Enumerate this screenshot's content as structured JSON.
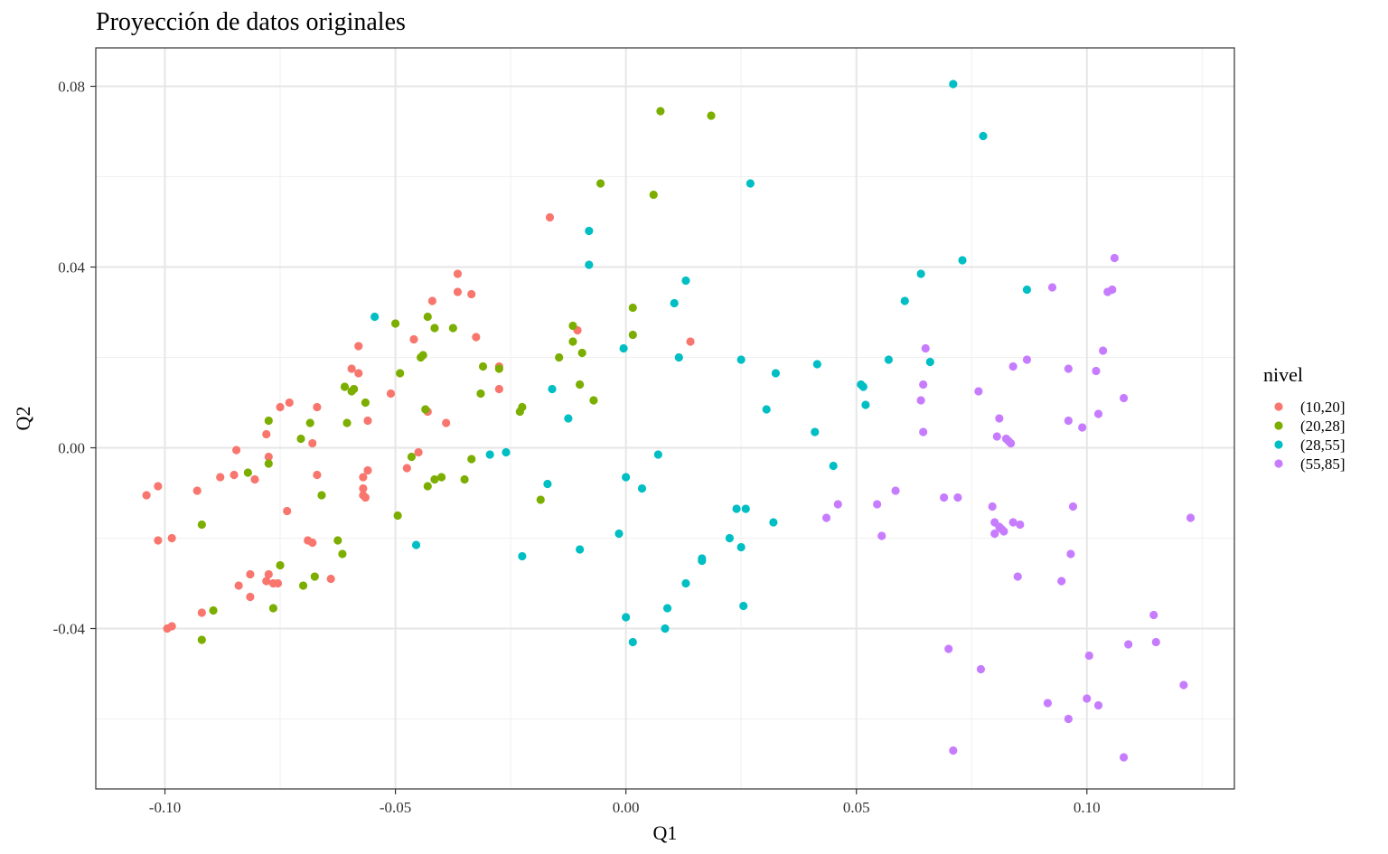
{
  "chart_data": {
    "type": "scatter",
    "title": "Proyección de datos originales",
    "xlabel": "Q1",
    "ylabel": "Q2",
    "xlim": [
      -0.115,
      0.132
    ],
    "ylim": [
      -0.0755,
      0.0885
    ],
    "x_ticks": [
      -0.1,
      -0.05,
      0.0,
      0.05,
      0.1
    ],
    "x_tick_labels": [
      "-0.10",
      "-0.05",
      "0.00",
      "0.05",
      "0.10"
    ],
    "y_ticks": [
      -0.04,
      0.0,
      0.04,
      0.08
    ],
    "y_tick_labels": [
      "-0.04",
      "0.00",
      "0.04",
      "0.08"
    ],
    "grid": true,
    "legend": {
      "title": "nivel",
      "position": "right"
    },
    "series": [
      {
        "name": "(10,20]",
        "color": "#F8766D",
        "points": [
          [
            -0.104,
            -0.0105
          ],
          [
            -0.1015,
            -0.0085
          ],
          [
            -0.1015,
            -0.0205
          ],
          [
            -0.0985,
            -0.02
          ],
          [
            -0.0995,
            -0.04
          ],
          [
            -0.0985,
            -0.0395
          ],
          [
            -0.093,
            -0.0095
          ],
          [
            -0.092,
            -0.0365
          ],
          [
            -0.088,
            -0.0065
          ],
          [
            -0.0845,
            -0.0005
          ],
          [
            -0.085,
            -0.006
          ],
          [
            -0.084,
            -0.0305
          ],
          [
            -0.0815,
            -0.028
          ],
          [
            -0.0815,
            -0.033
          ],
          [
            -0.0805,
            -0.007
          ],
          [
            -0.078,
            -0.0295
          ],
          [
            -0.0775,
            -0.028
          ],
          [
            -0.0775,
            -0.002
          ],
          [
            -0.0765,
            -0.03
          ],
          [
            -0.0755,
            -0.03
          ],
          [
            -0.078,
            0.003
          ],
          [
            -0.075,
            0.009
          ],
          [
            -0.0735,
            -0.014
          ],
          [
            -0.073,
            0.01
          ],
          [
            -0.069,
            -0.0205
          ],
          [
            -0.068,
            -0.021
          ],
          [
            -0.068,
            0.001
          ],
          [
            -0.067,
            0.009
          ],
          [
            -0.067,
            -0.006
          ],
          [
            -0.064,
            -0.029
          ],
          [
            -0.0595,
            0.0175
          ],
          [
            -0.058,
            0.0225
          ],
          [
            -0.058,
            0.0165
          ],
          [
            -0.057,
            -0.0065
          ],
          [
            -0.057,
            -0.009
          ],
          [
            -0.057,
            -0.0105
          ],
          [
            -0.0565,
            -0.011
          ],
          [
            -0.056,
            -0.005
          ],
          [
            -0.056,
            0.006
          ],
          [
            -0.051,
            0.012
          ],
          [
            -0.0475,
            -0.0045
          ],
          [
            -0.046,
            0.024
          ],
          [
            -0.045,
            -0.001
          ],
          [
            -0.043,
            0.008
          ],
          [
            -0.042,
            0.0325
          ],
          [
            -0.039,
            0.0055
          ],
          [
            -0.0365,
            0.0385
          ],
          [
            -0.0365,
            0.0345
          ],
          [
            -0.0335,
            0.034
          ],
          [
            -0.0325,
            0.0245
          ],
          [
            -0.0275,
            0.018
          ],
          [
            -0.0275,
            0.013
          ],
          [
            -0.0165,
            0.051
          ],
          [
            -0.0105,
            0.026
          ],
          [
            0.014,
            0.0235
          ]
        ]
      },
      {
        "name": "(20,28]",
        "color": "#7CAE00",
        "points": [
          [
            -0.092,
            -0.017
          ],
          [
            -0.092,
            -0.0425
          ],
          [
            -0.0895,
            -0.036
          ],
          [
            -0.082,
            -0.0055
          ],
          [
            -0.0775,
            -0.0035
          ],
          [
            -0.0775,
            0.006
          ],
          [
            -0.0765,
            -0.0355
          ],
          [
            -0.075,
            -0.026
          ],
          [
            -0.0705,
            0.002
          ],
          [
            -0.07,
            -0.0305
          ],
          [
            -0.0685,
            0.0055
          ],
          [
            -0.0675,
            -0.0285
          ],
          [
            -0.066,
            -0.0105
          ],
          [
            -0.0625,
            -0.0205
          ],
          [
            -0.0615,
            -0.0235
          ],
          [
            -0.061,
            0.0135
          ],
          [
            -0.0605,
            0.0055
          ],
          [
            -0.0595,
            0.0125
          ],
          [
            -0.059,
            0.013
          ],
          [
            -0.0565,
            0.01
          ],
          [
            -0.05,
            0.0275
          ],
          [
            -0.0495,
            -0.015
          ],
          [
            -0.049,
            0.0165
          ],
          [
            -0.0465,
            -0.002
          ],
          [
            -0.0445,
            0.02
          ],
          [
            -0.044,
            0.0205
          ],
          [
            -0.0435,
            0.0085
          ],
          [
            -0.043,
            0.029
          ],
          [
            -0.043,
            -0.0085
          ],
          [
            -0.0415,
            0.0265
          ],
          [
            -0.0415,
            -0.007
          ],
          [
            -0.04,
            -0.0065
          ],
          [
            -0.0375,
            0.0265
          ],
          [
            -0.035,
            -0.007
          ],
          [
            -0.0335,
            -0.0025
          ],
          [
            -0.0315,
            0.012
          ],
          [
            -0.031,
            0.018
          ],
          [
            -0.0275,
            0.0175
          ],
          [
            -0.023,
            0.008
          ],
          [
            -0.0225,
            0.009
          ],
          [
            -0.0185,
            -0.0115
          ],
          [
            -0.0145,
            0.02
          ],
          [
            -0.0115,
            0.027
          ],
          [
            -0.0115,
            0.0235
          ],
          [
            -0.01,
            0.014
          ],
          [
            -0.0095,
            0.021
          ],
          [
            -0.007,
            0.0105
          ],
          [
            -0.0055,
            0.0585
          ],
          [
            0.0015,
            0.031
          ],
          [
            0.0015,
            0.025
          ],
          [
            0.006,
            0.056
          ],
          [
            0.0075,
            0.0745
          ],
          [
            0.0185,
            0.0735
          ]
        ]
      },
      {
        "name": "(28,55]",
        "color": "#00BFC4",
        "points": [
          [
            -0.0545,
            0.029
          ],
          [
            -0.0455,
            -0.0215
          ],
          [
            -0.0295,
            -0.0015
          ],
          [
            -0.026,
            -0.001
          ],
          [
            -0.0225,
            -0.024
          ],
          [
            -0.017,
            -0.008
          ],
          [
            -0.016,
            0.013
          ],
          [
            -0.0125,
            0.0065
          ],
          [
            -0.01,
            -0.0225
          ],
          [
            -0.008,
            0.048
          ],
          [
            -0.008,
            0.0405
          ],
          [
            -0.0015,
            -0.019
          ],
          [
            -0.0005,
            0.022
          ],
          [
            0.0,
            -0.0375
          ],
          [
            0.0,
            -0.0065
          ],
          [
            0.0015,
            -0.043
          ],
          [
            0.0035,
            -0.009
          ],
          [
            0.007,
            -0.0015
          ],
          [
            0.0085,
            -0.04
          ],
          [
            0.009,
            -0.0355
          ],
          [
            0.0105,
            0.032
          ],
          [
            0.0115,
            0.02
          ],
          [
            0.013,
            0.037
          ],
          [
            0.013,
            -0.03
          ],
          [
            0.0165,
            -0.025
          ],
          [
            0.0165,
            -0.0245
          ],
          [
            0.0225,
            -0.02
          ],
          [
            0.024,
            -0.0135
          ],
          [
            0.0255,
            -0.035
          ],
          [
            0.025,
            -0.022
          ],
          [
            0.025,
            0.0195
          ],
          [
            0.026,
            -0.0135
          ],
          [
            0.027,
            0.0585
          ],
          [
            0.0305,
            0.0085
          ],
          [
            0.032,
            -0.0165
          ],
          [
            0.0325,
            0.0165
          ],
          [
            0.041,
            0.0035
          ],
          [
            0.0415,
            0.0185
          ],
          [
            0.045,
            -0.004
          ],
          [
            0.051,
            0.014
          ],
          [
            0.0515,
            0.0135
          ],
          [
            0.052,
            0.0095
          ],
          [
            0.057,
            0.0195
          ],
          [
            0.0605,
            0.0325
          ],
          [
            0.064,
            0.0385
          ],
          [
            0.066,
            0.019
          ],
          [
            0.071,
            0.0805
          ],
          [
            0.073,
            0.0415
          ],
          [
            0.0775,
            0.069
          ],
          [
            0.087,
            0.035
          ]
        ]
      },
      {
        "name": "(55,85]",
        "color": "#C77CFF",
        "points": [
          [
            0.0435,
            -0.0155
          ],
          [
            0.046,
            -0.0125
          ],
          [
            0.0545,
            -0.0125
          ],
          [
            0.0555,
            -0.0195
          ],
          [
            0.0585,
            -0.0095
          ],
          [
            0.064,
            0.0105
          ],
          [
            0.0645,
            0.0035
          ],
          [
            0.0645,
            0.014
          ],
          [
            0.065,
            0.022
          ],
          [
            0.069,
            -0.011
          ],
          [
            0.07,
            -0.0445
          ],
          [
            0.071,
            -0.067
          ],
          [
            0.072,
            -0.011
          ],
          [
            0.0765,
            0.0125
          ],
          [
            0.077,
            -0.049
          ],
          [
            0.0795,
            -0.013
          ],
          [
            0.08,
            -0.0165
          ],
          [
            0.08,
            -0.019
          ],
          [
            0.0805,
            0.0025
          ],
          [
            0.081,
            0.0065
          ],
          [
            0.081,
            -0.0175
          ],
          [
            0.0815,
            -0.018
          ],
          [
            0.082,
            -0.0185
          ],
          [
            0.0825,
            0.002
          ],
          [
            0.083,
            0.0015
          ],
          [
            0.0835,
            0.001
          ],
          [
            0.084,
            -0.0165
          ],
          [
            0.084,
            0.018
          ],
          [
            0.085,
            -0.0285
          ],
          [
            0.0855,
            -0.017
          ],
          [
            0.087,
            0.0195
          ],
          [
            0.0915,
            -0.0565
          ],
          [
            0.0925,
            0.0355
          ],
          [
            0.0945,
            -0.0295
          ],
          [
            0.096,
            0.006
          ],
          [
            0.096,
            0.0175
          ],
          [
            0.096,
            -0.06
          ],
          [
            0.0965,
            -0.0235
          ],
          [
            0.097,
            -0.013
          ],
          [
            0.099,
            0.0045
          ],
          [
            0.1,
            -0.0555
          ],
          [
            0.1005,
            -0.046
          ],
          [
            0.102,
            0.017
          ],
          [
            0.1025,
            0.0075
          ],
          [
            0.1025,
            -0.057
          ],
          [
            0.1035,
            0.0215
          ],
          [
            0.1045,
            0.0345
          ],
          [
            0.1055,
            0.035
          ],
          [
            0.106,
            0.042
          ],
          [
            0.108,
            0.011
          ],
          [
            0.108,
            -0.0685
          ],
          [
            0.109,
            -0.0435
          ],
          [
            0.1145,
            -0.037
          ],
          [
            0.115,
            -0.043
          ],
          [
            0.121,
            -0.0525
          ],
          [
            0.1225,
            -0.0155
          ]
        ]
      }
    ]
  }
}
